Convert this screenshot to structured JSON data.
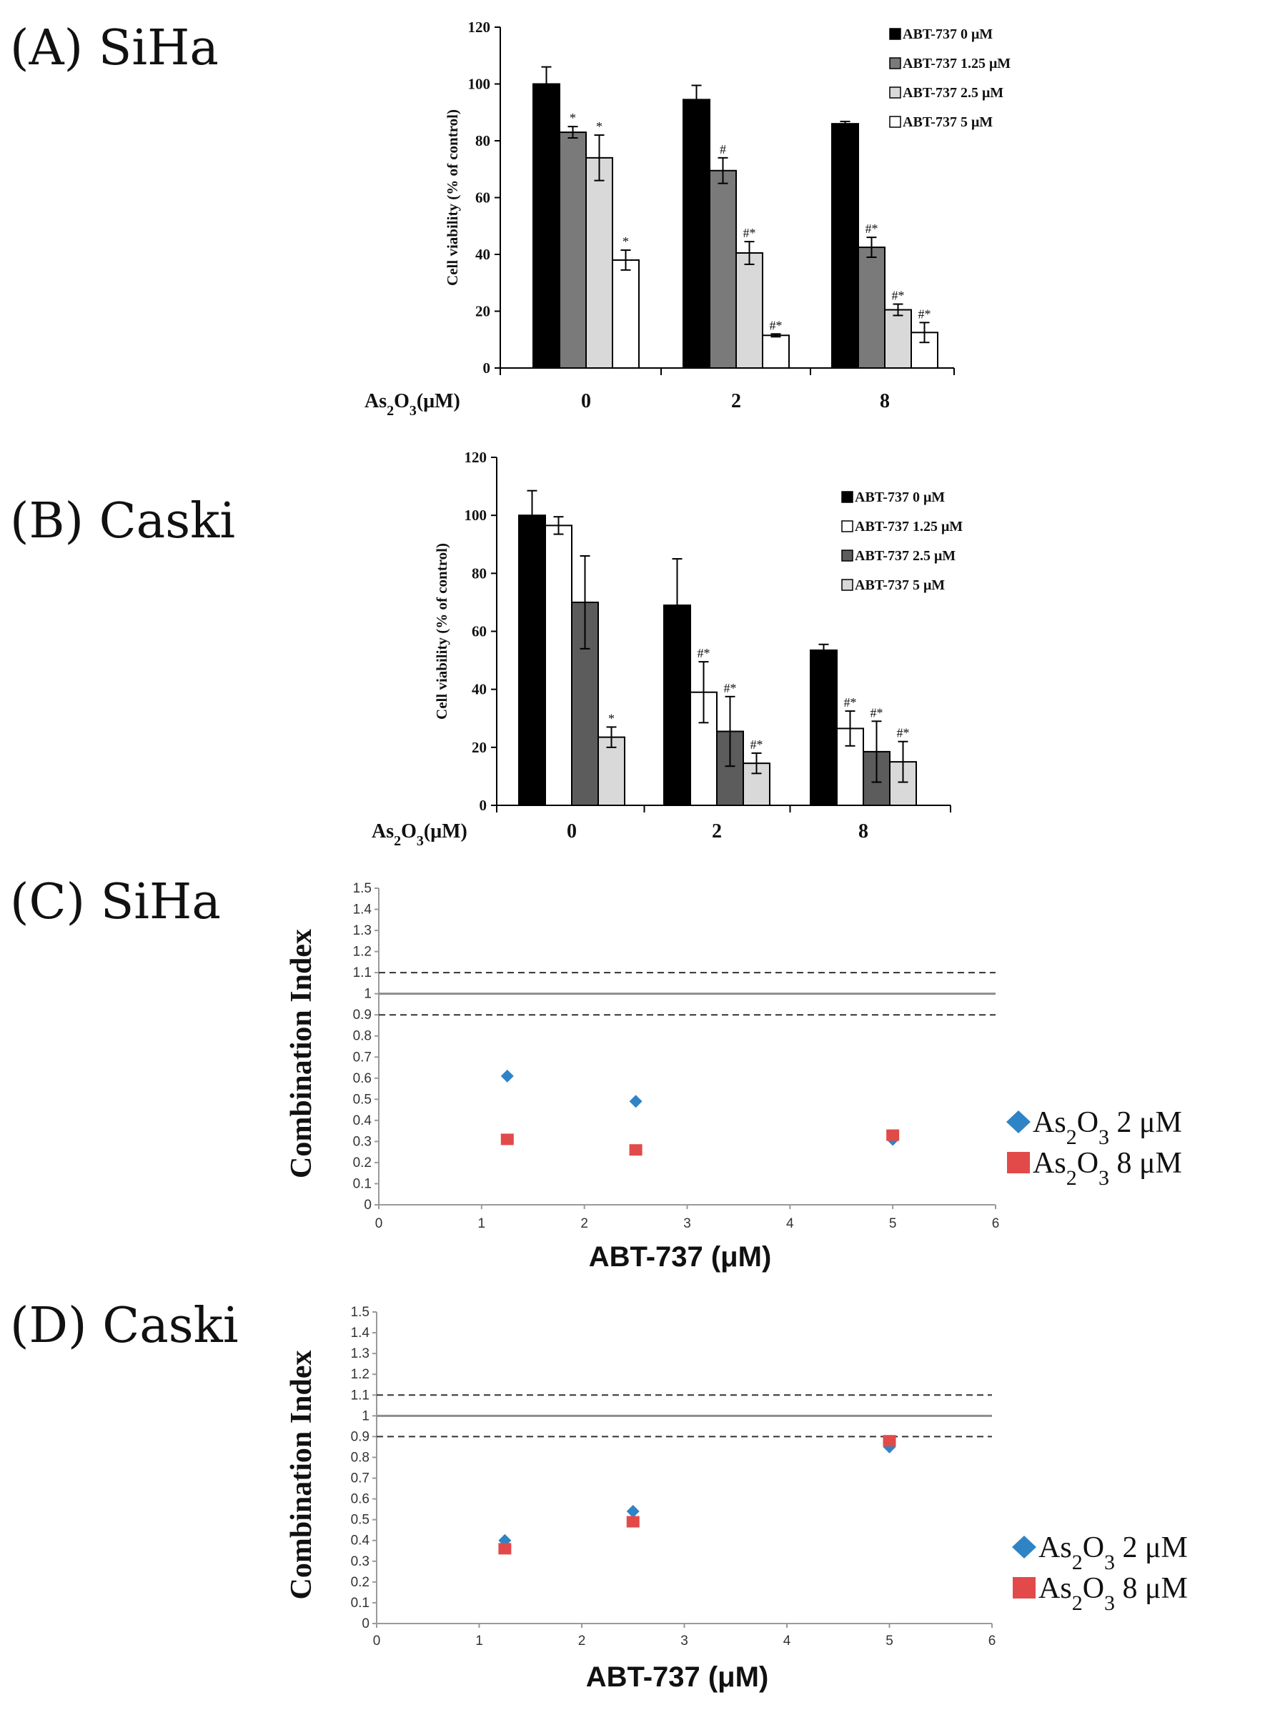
{
  "colors": {
    "black": "#000000",
    "dark_gray": "#7a7a7a",
    "darker_gray": "#5c5c5c",
    "light_gray": "#d9d9d9",
    "white": "#ffffff",
    "ci_blue": "#2f84c6",
    "ci_red": "#e24a4a"
  },
  "chart_data": [
    {
      "panel_label": "(A) SiHa",
      "type": "bar",
      "title": "",
      "ylabel": "Cell viability (% of control)",
      "xlabel_main": "As",
      "xlabel_sub1": "2",
      "xlabel_mid": "O",
      "xlabel_sub2": "3",
      "xlabel_tail": "(μM)",
      "categories": [
        "0",
        "2",
        "8"
      ],
      "ylim": [
        0,
        120
      ],
      "yticks": [
        "0",
        "20",
        "40",
        "60",
        "80",
        "100",
        "120"
      ],
      "legend_position": "top-right",
      "series": [
        {
          "name": "ABT-737 0 μM",
          "color": "#000000",
          "values": [
            100,
            94.5,
            86
          ],
          "errors": [
            6,
            5,
            0.8
          ],
          "annotations": [
            "",
            "",
            ""
          ]
        },
        {
          "name": "ABT-737 1.25 μM",
          "color": "#7a7a7a",
          "values": [
            83,
            69.5,
            42.5
          ],
          "errors": [
            2,
            4.5,
            3.5
          ],
          "annotations": [
            "*",
            "#",
            "#*"
          ]
        },
        {
          "name": "ABT-737 2.5 μM",
          "color": "#d9d9d9",
          "values": [
            74,
            40.5,
            20.5
          ],
          "errors": [
            8,
            4,
            2
          ],
          "annotations": [
            "*",
            "#*",
            "#*"
          ]
        },
        {
          "name": "ABT-737 5 μM",
          "color": "#ffffff",
          "values": [
            38,
            11.5,
            12.5
          ],
          "errors": [
            3.5,
            0.5,
            3.5
          ],
          "annotations": [
            "*",
            "#*",
            "#*"
          ]
        }
      ]
    },
    {
      "panel_label": "(B) Caski",
      "type": "bar",
      "title": "",
      "ylabel": "Cell viability (% of control)",
      "xlabel_main": "As",
      "xlabel_sub1": "2",
      "xlabel_mid": "O",
      "xlabel_sub2": "3",
      "xlabel_tail": "(μM)",
      "categories": [
        "0",
        "2",
        "8"
      ],
      "ylim": [
        0,
        120
      ],
      "yticks": [
        "0",
        "20",
        "40",
        "60",
        "80",
        "100",
        "120"
      ],
      "legend_position": "top-right",
      "series": [
        {
          "name": "ABT-737 0 μM",
          "color": "#000000",
          "values": [
            100,
            69,
            53.5
          ],
          "errors": [
            8.5,
            16,
            2
          ],
          "annotations": [
            "",
            "",
            ""
          ]
        },
        {
          "name": "ABT-737 1.25 μM",
          "color": "#ffffff",
          "values": [
            96.5,
            39,
            26.5
          ],
          "errors": [
            3,
            10.5,
            6
          ],
          "annotations": [
            "",
            "#*",
            "#*"
          ]
        },
        {
          "name": "ABT-737 2.5 μM",
          "color": "#5c5c5c",
          "values": [
            70,
            25.5,
            18.5
          ],
          "errors": [
            16,
            12,
            10.5
          ],
          "annotations": [
            "",
            "#*",
            "#*"
          ]
        },
        {
          "name": "ABT-737 5 μM",
          "color": "#d9d9d9",
          "values": [
            23.5,
            14.5,
            15
          ],
          "errors": [
            3.5,
            3.5,
            7
          ],
          "annotations": [
            "*",
            "#*",
            "#*"
          ]
        }
      ]
    },
    {
      "panel_label": "(C) SiHa",
      "type": "scatter",
      "title": "",
      "ylabel": "Combination Index",
      "xlabel": "ABT-737 (μM)",
      "xlim": [
        0,
        6
      ],
      "ylim": [
        0,
        1.5
      ],
      "xticks": [
        "0",
        "1",
        "2",
        "3",
        "4",
        "5",
        "6"
      ],
      "yticks": [
        "0",
        "0.1",
        "0.2",
        "0.3",
        "0.4",
        "0.5",
        "0.6",
        "0.7",
        "0.8",
        "0.9",
        "1",
        "1.1",
        "1.2",
        "1.3",
        "1.4",
        "1.5"
      ],
      "reference_lines": [
        {
          "y": 1.1,
          "style": "dashed"
        },
        {
          "y": 1.0,
          "style": "solid"
        },
        {
          "y": 0.9,
          "style": "dashed"
        }
      ],
      "legend_position": "right",
      "series": [
        {
          "name": "As2O3 2 μM",
          "label_main": "As",
          "label_sub1": "2",
          "label_mid": "O",
          "label_sub2": "3",
          "label_tail": " 2 μM",
          "marker": "diamond",
          "color": "#2f84c6",
          "x": [
            1.25,
            2.5,
            5
          ],
          "y": [
            0.61,
            0.49,
            0.31
          ]
        },
        {
          "name": "As2O3 8 μM",
          "label_main": "As",
          "label_sub1": "2",
          "label_mid": "O",
          "label_sub2": "3",
          "label_tail": " 8 μM",
          "marker": "square",
          "color": "#e24a4a",
          "x": [
            1.25,
            2.5,
            5
          ],
          "y": [
            0.31,
            0.26,
            0.33
          ]
        }
      ]
    },
    {
      "panel_label": "(D) Caski",
      "type": "scatter",
      "title": "",
      "ylabel": "Combination Index",
      "xlabel": "ABT-737 (μM)",
      "xlim": [
        0,
        6
      ],
      "ylim": [
        0,
        1.5
      ],
      "xticks": [
        "0",
        "1",
        "2",
        "3",
        "4",
        "5",
        "6"
      ],
      "yticks": [
        "0",
        "0.1",
        "0.2",
        "0.3",
        "0.4",
        "0.5",
        "0.6",
        "0.7",
        "0.8",
        "0.9",
        "1",
        "1.1",
        "1.2",
        "1.3",
        "1.4",
        "1.5"
      ],
      "reference_lines": [
        {
          "y": 1.1,
          "style": "dashed"
        },
        {
          "y": 1.0,
          "style": "solid"
        },
        {
          "y": 0.9,
          "style": "dashed"
        }
      ],
      "legend_position": "right",
      "series": [
        {
          "name": "As2O3 2 μM",
          "label_main": "As",
          "label_sub1": "2",
          "label_mid": "O",
          "label_sub2": "3",
          "label_tail": " 2 μM",
          "marker": "diamond",
          "color": "#2f84c6",
          "x": [
            1.25,
            2.5,
            5
          ],
          "y": [
            0.4,
            0.54,
            0.85
          ]
        },
        {
          "name": "As2O3 8 μM",
          "label_main": "As",
          "label_sub1": "2",
          "label_mid": "O",
          "label_sub2": "3",
          "label_tail": " 8 μM",
          "marker": "square",
          "color": "#e24a4a",
          "x": [
            1.25,
            2.5,
            5
          ],
          "y": [
            0.36,
            0.49,
            0.88
          ]
        }
      ]
    }
  ]
}
